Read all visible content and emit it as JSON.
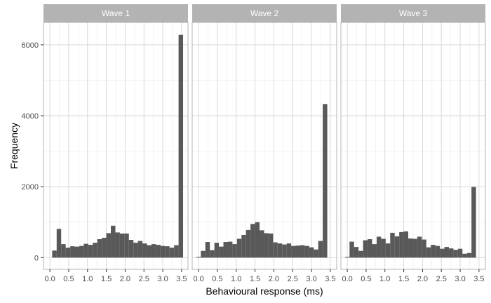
{
  "chart_data": {
    "type": "bar",
    "xlabel": "Behavioural response (ms)",
    "ylabel": "Frequency",
    "xlim": [
      -0.17,
      3.67
    ],
    "ylim": [
      -330,
      6630
    ],
    "x_ticks": [
      0.0,
      0.5,
      1.0,
      1.5,
      2.0,
      2.5,
      3.0,
      3.5
    ],
    "x_tick_labels": [
      "0.0",
      "0.5",
      "1.0",
      "1.5",
      "2.0",
      "2.5",
      "3.0",
      "3.5"
    ],
    "y_ticks": [
      0,
      2000,
      4000,
      6000
    ],
    "y_tick_labels": [
      "0",
      "2000",
      "4000",
      "6000"
    ],
    "grid": true,
    "bin_width": 0.12,
    "bin_centers": [
      0.0,
      0.12,
      0.24,
      0.36,
      0.48,
      0.6,
      0.72,
      0.84,
      0.96,
      1.08,
      1.2,
      1.32,
      1.44,
      1.56,
      1.68,
      1.8,
      1.92,
      2.04,
      2.16,
      2.28,
      2.4,
      2.52,
      2.64,
      2.76,
      2.88,
      3.0,
      3.12,
      3.24,
      3.36,
      3.48
    ],
    "panels": [
      {
        "strip": "Wave 1",
        "values": [
          0,
          200,
          810,
          380,
          280,
          320,
          310,
          330,
          390,
          360,
          420,
          520,
          560,
          690,
          900,
          710,
          680,
          680,
          500,
          420,
          470,
          400,
          350,
          380,
          360,
          330,
          320,
          280,
          350,
          6280
        ]
      },
      {
        "strip": "Wave 2",
        "values": [
          20,
          190,
          440,
          210,
          420,
          310,
          440,
          450,
          380,
          530,
          640,
          780,
          950,
          1000,
          770,
          690,
          680,
          430,
          400,
          370,
          400,
          330,
          340,
          350,
          330,
          290,
          230,
          470,
          4330,
          0
        ]
      },
      {
        "strip": "Wave 3",
        "values": [
          20,
          450,
          300,
          190,
          490,
          520,
          380,
          590,
          530,
          400,
          700,
          600,
          720,
          740,
          540,
          530,
          590,
          510,
          290,
          360,
          330,
          250,
          300,
          260,
          220,
          250,
          110,
          130,
          1990,
          0
        ]
      }
    ],
    "colors": {
      "bar": "#595959",
      "panel_background": "#ffffff",
      "panel_border": "#b3b3b3",
      "grid_major": "#d9d9d9",
      "grid_minor": "#ebebeb",
      "strip_background": "#b3b3b3",
      "strip_text": "#ffffff"
    }
  }
}
